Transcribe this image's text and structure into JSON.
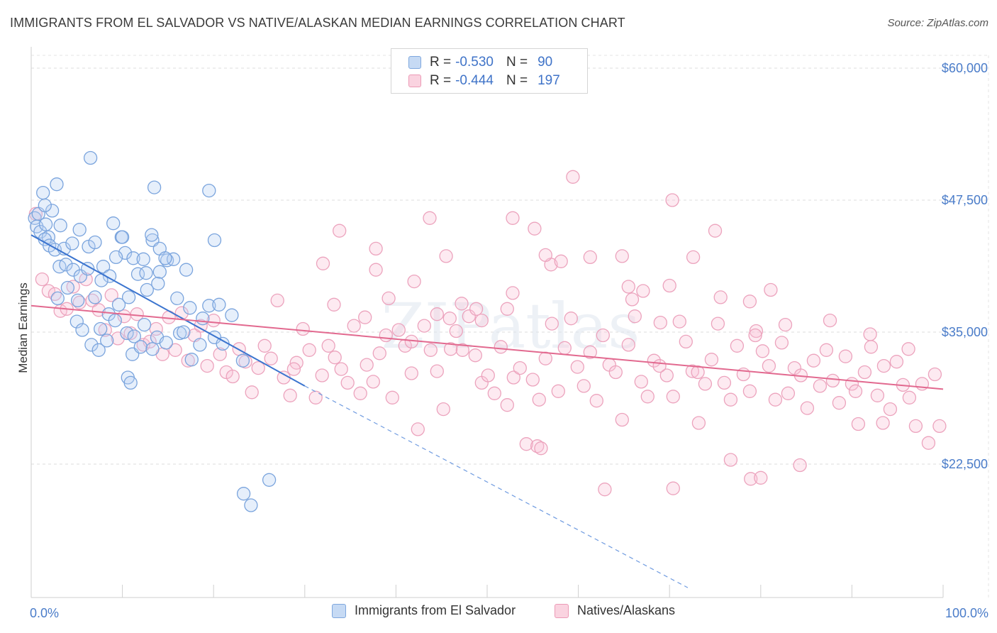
{
  "title": "IMMIGRANTS FROM EL SALVADOR VS NATIVE/ALASKAN MEDIAN EARNINGS CORRELATION CHART",
  "source": "Source: ZipAtlas.com",
  "watermark": "ZIPatlas",
  "legend": {
    "rows": [
      {
        "r_label": "R =",
        "r_value": "-0.530",
        "n_label": "N =",
        "n_value": "90",
        "color": "#8fb5e8"
      },
      {
        "r_label": "R =",
        "r_value": "-0.444",
        "n_label": "N =",
        "n_value": "197",
        "color": "#f1a7bf"
      }
    ]
  },
  "bottom_legend": {
    "series_a": "Immigrants from El Salvador",
    "series_b": "Natives/Alaskans"
  },
  "chart_data": {
    "type": "scatter",
    "title": "IMMIGRANTS FROM EL SALVADOR VS NATIVE/ALASKAN MEDIAN EARNINGS CORRELATION CHART",
    "xlabel": "",
    "ylabel": "Median Earnings",
    "xlim": [
      0,
      100
    ],
    "ylim": [
      12000,
      62000
    ],
    "x_tick_labels": [
      "0.0%",
      "100.0%"
    ],
    "y_ticks": [
      22500,
      35000,
      47500,
      60000
    ],
    "y_tick_labels": [
      "$22,500",
      "$35,000",
      "$47,500",
      "$60,000"
    ],
    "grid": true,
    "legend_position": "top-center",
    "colors": {
      "immigrants": "#5b8fd6",
      "natives": "#e8709a"
    },
    "trendlines": [
      {
        "series": "Immigrants from El Salvador",
        "x_start": 0,
        "y_start": 44200,
        "x_solid_end": 30,
        "y_solid_end": 29900,
        "x_dash_end": 72,
        "y_dash_end": 10800
      },
      {
        "series": "Natives/Alaskans",
        "x_start": 0,
        "y_start": 37500,
        "x_end": 100,
        "y_end": 29600
      }
    ],
    "series": [
      {
        "name": "Immigrants from El Salvador",
        "points": [
          [
            0.4,
            45800
          ],
          [
            0.8,
            46200
          ],
          [
            0.6,
            45000
          ],
          [
            1.0,
            44500
          ],
          [
            1.3,
            48200
          ],
          [
            1.6,
            45200
          ],
          [
            1.9,
            44000
          ],
          [
            2.3,
            46500
          ],
          [
            2.8,
            49000
          ],
          [
            3.2,
            45100
          ],
          [
            1.5,
            43800
          ],
          [
            2.0,
            43200
          ],
          [
            2.6,
            42800
          ],
          [
            3.6,
            42900
          ],
          [
            4.5,
            43400
          ],
          [
            5.3,
            44700
          ],
          [
            6.3,
            43100
          ],
          [
            7.0,
            43500
          ],
          [
            9.0,
            45300
          ],
          [
            9.9,
            44000
          ],
          [
            10.3,
            42500
          ],
          [
            11.2,
            42000
          ],
          [
            12.3,
            41900
          ],
          [
            13.3,
            43700
          ],
          [
            14.1,
            42900
          ],
          [
            14.9,
            41800
          ],
          [
            15.6,
            41900
          ],
          [
            3.1,
            41200
          ],
          [
            3.8,
            41400
          ],
          [
            4.6,
            40900
          ],
          [
            5.4,
            40300
          ],
          [
            6.2,
            41000
          ],
          [
            7.9,
            41200
          ],
          [
            8.6,
            40300
          ],
          [
            9.3,
            42100
          ],
          [
            11.7,
            40500
          ],
          [
            12.6,
            40600
          ],
          [
            14.1,
            40700
          ],
          [
            14.7,
            42000
          ],
          [
            17.0,
            40900
          ],
          [
            2.9,
            38200
          ],
          [
            4.0,
            39200
          ],
          [
            5.1,
            38000
          ],
          [
            7.0,
            38300
          ],
          [
            7.7,
            39900
          ],
          [
            9.6,
            37600
          ],
          [
            10.7,
            38300
          ],
          [
            12.7,
            39000
          ],
          [
            13.9,
            39600
          ],
          [
            16.0,
            38200
          ],
          [
            5.0,
            36000
          ],
          [
            5.6,
            35200
          ],
          [
            7.6,
            35300
          ],
          [
            8.5,
            36700
          ],
          [
            9.2,
            36100
          ],
          [
            10.5,
            34900
          ],
          [
            11.3,
            34600
          ],
          [
            12.4,
            35700
          ],
          [
            13.8,
            34500
          ],
          [
            16.3,
            34900
          ],
          [
            6.6,
            33800
          ],
          [
            7.4,
            33300
          ],
          [
            8.3,
            34200
          ],
          [
            11.1,
            32900
          ],
          [
            12.0,
            33600
          ],
          [
            13.3,
            33400
          ],
          [
            14.8,
            34000
          ],
          [
            16.7,
            35000
          ],
          [
            17.6,
            32400
          ],
          [
            18.5,
            33800
          ],
          [
            10.6,
            30700
          ],
          [
            10.9,
            30200
          ],
          [
            17.4,
            37300
          ],
          [
            18.8,
            36300
          ],
          [
            19.5,
            37500
          ],
          [
            20.6,
            37600
          ],
          [
            22.0,
            36600
          ],
          [
            20.1,
            34500
          ],
          [
            21.0,
            33900
          ],
          [
            23.2,
            32300
          ],
          [
            6.5,
            51500
          ],
          [
            13.5,
            48700
          ],
          [
            19.5,
            48400
          ],
          [
            20.1,
            43700
          ],
          [
            13.2,
            44200
          ],
          [
            10.0,
            44000
          ],
          [
            23.3,
            19700
          ],
          [
            24.1,
            18600
          ],
          [
            26.1,
            21000
          ],
          [
            1.5,
            47000
          ]
        ]
      },
      {
        "name": "Natives/Alaskans",
        "points": [
          [
            0.5,
            46200
          ],
          [
            1.2,
            40000
          ],
          [
            1.9,
            38900
          ],
          [
            2.6,
            38600
          ],
          [
            3.2,
            37000
          ],
          [
            3.9,
            37200
          ],
          [
            4.6,
            39300
          ],
          [
            5.3,
            37800
          ],
          [
            6.0,
            40000
          ],
          [
            6.7,
            38000
          ],
          [
            7.4,
            37100
          ],
          [
            8.1,
            35200
          ],
          [
            8.8,
            38500
          ],
          [
            9.5,
            34400
          ],
          [
            10.2,
            36500
          ],
          [
            10.9,
            34900
          ],
          [
            11.6,
            36700
          ],
          [
            12.3,
            33800
          ],
          [
            13.0,
            34100
          ],
          [
            13.7,
            35300
          ],
          [
            14.4,
            32900
          ],
          [
            15.1,
            36400
          ],
          [
            15.8,
            33300
          ],
          [
            16.5,
            36800
          ],
          [
            17.2,
            32300
          ],
          [
            17.9,
            34700
          ],
          [
            18.6,
            35600
          ],
          [
            19.3,
            31800
          ],
          [
            20.0,
            36100
          ],
          [
            20.7,
            32900
          ],
          [
            21.4,
            31200
          ],
          [
            22.1,
            30800
          ],
          [
            22.8,
            33400
          ],
          [
            23.5,
            32200
          ],
          [
            24.2,
            29300
          ],
          [
            24.9,
            31600
          ],
          [
            25.6,
            33700
          ],
          [
            26.3,
            32500
          ],
          [
            27.0,
            38000
          ],
          [
            27.7,
            30700
          ],
          [
            28.4,
            29000
          ],
          [
            29.1,
            32100
          ],
          [
            29.8,
            35300
          ],
          [
            30.5,
            33300
          ],
          [
            31.2,
            28800
          ],
          [
            31.9,
            30900
          ],
          [
            32.6,
            33700
          ],
          [
            33.3,
            32600
          ],
          [
            34.0,
            31500
          ],
          [
            34.7,
            30200
          ],
          [
            35.4,
            35600
          ],
          [
            36.1,
            29200
          ],
          [
            36.8,
            31900
          ],
          [
            37.5,
            30300
          ],
          [
            38.2,
            33000
          ],
          [
            38.9,
            34700
          ],
          [
            39.6,
            28800
          ],
          [
            40.3,
            35200
          ],
          [
            41.0,
            33700
          ],
          [
            41.7,
            31100
          ],
          [
            42.4,
            25800
          ],
          [
            43.1,
            35600
          ],
          [
            43.8,
            33300
          ],
          [
            44.5,
            31300
          ],
          [
            45.2,
            27700
          ],
          [
            45.9,
            36300
          ],
          [
            46.6,
            35100
          ],
          [
            47.3,
            33300
          ],
          [
            48.0,
            36500
          ],
          [
            48.7,
            32800
          ],
          [
            49.4,
            30200
          ],
          [
            50.1,
            30900
          ],
          [
            50.8,
            29200
          ],
          [
            51.5,
            33600
          ],
          [
            52.2,
            28100
          ],
          [
            52.9,
            30700
          ],
          [
            53.6,
            31600
          ],
          [
            54.3,
            24400
          ],
          [
            55.0,
            30500
          ],
          [
            55.7,
            28600
          ],
          [
            56.4,
            32500
          ],
          [
            57.1,
            35800
          ],
          [
            57.8,
            29400
          ],
          [
            58.5,
            33500
          ],
          [
            59.2,
            36300
          ],
          [
            59.9,
            31700
          ],
          [
            60.6,
            29900
          ],
          [
            61.3,
            33100
          ],
          [
            62.0,
            28500
          ],
          [
            62.7,
            34700
          ],
          [
            63.4,
            31900
          ],
          [
            64.1,
            31200
          ],
          [
            64.8,
            26700
          ],
          [
            65.5,
            33800
          ],
          [
            66.2,
            36500
          ],
          [
            66.9,
            30300
          ],
          [
            67.6,
            28900
          ],
          [
            68.3,
            32300
          ],
          [
            69.0,
            35900
          ],
          [
            69.7,
            30900
          ],
          [
            70.4,
            28900
          ],
          [
            71.1,
            36000
          ],
          [
            71.8,
            34100
          ],
          [
            72.5,
            31300
          ],
          [
            73.2,
            26400
          ],
          [
            73.9,
            30100
          ],
          [
            74.6,
            32400
          ],
          [
            75.3,
            35800
          ],
          [
            76.0,
            30200
          ],
          [
            76.7,
            28600
          ],
          [
            77.4,
            33700
          ],
          [
            78.1,
            31000
          ],
          [
            78.8,
            29400
          ],
          [
            79.5,
            35100
          ],
          [
            80.2,
            33200
          ],
          [
            80.9,
            31800
          ],
          [
            81.6,
            28600
          ],
          [
            82.3,
            34000
          ],
          [
            83.0,
            29200
          ],
          [
            83.7,
            31600
          ],
          [
            84.4,
            30900
          ],
          [
            85.1,
            27800
          ],
          [
            85.8,
            32300
          ],
          [
            86.5,
            29900
          ],
          [
            87.2,
            33300
          ],
          [
            87.9,
            30400
          ],
          [
            88.6,
            28300
          ],
          [
            89.3,
            32700
          ],
          [
            90.0,
            30100
          ],
          [
            90.7,
            26300
          ],
          [
            91.4,
            31200
          ],
          [
            92.1,
            33600
          ],
          [
            92.8,
            29000
          ],
          [
            93.5,
            31800
          ],
          [
            94.2,
            27700
          ],
          [
            94.9,
            32200
          ],
          [
            95.6,
            30000
          ],
          [
            96.3,
            28800
          ],
          [
            97.0,
            26100
          ],
          [
            97.7,
            30100
          ],
          [
            98.4,
            24500
          ],
          [
            99.1,
            31000
          ],
          [
            99.6,
            26100
          ],
          [
            33.8,
            44600
          ],
          [
            37.8,
            42900
          ],
          [
            43.7,
            45800
          ],
          [
            45.5,
            42200
          ],
          [
            52.8,
            45800
          ],
          [
            55.2,
            44800
          ],
          [
            57.0,
            41400
          ],
          [
            59.4,
            49700
          ],
          [
            64.8,
            42200
          ],
          [
            65.9,
            38100
          ],
          [
            70.3,
            47500
          ],
          [
            65.5,
            39300
          ],
          [
            67.1,
            38900
          ],
          [
            72.6,
            42100
          ],
          [
            70.0,
            39400
          ],
          [
            75.0,
            44600
          ],
          [
            75.6,
            38300
          ],
          [
            78.8,
            37900
          ],
          [
            81.1,
            39000
          ],
          [
            32.0,
            41500
          ],
          [
            33.2,
            37600
          ],
          [
            37.8,
            40900
          ],
          [
            39.2,
            38200
          ],
          [
            42.0,
            39800
          ],
          [
            47.2,
            37700
          ],
          [
            49.4,
            36100
          ],
          [
            52.8,
            38700
          ],
          [
            58.1,
            41700
          ],
          [
            61.3,
            42100
          ],
          [
            56.4,
            42300
          ],
          [
            68.9,
            31800
          ],
          [
            73.1,
            31200
          ],
          [
            79.4,
            34700
          ],
          [
            82.7,
            35700
          ],
          [
            87.6,
            36100
          ],
          [
            92.0,
            34800
          ],
          [
            96.2,
            33400
          ],
          [
            93.4,
            26400
          ],
          [
            90.4,
            29400
          ],
          [
            62.9,
            20100
          ],
          [
            70.4,
            20200
          ],
          [
            76.7,
            22900
          ],
          [
            78.9,
            21100
          ],
          [
            80.0,
            21200
          ],
          [
            84.3,
            22400
          ],
          [
            55.5,
            24200
          ],
          [
            55.9,
            24000
          ],
          [
            48.8,
            37200
          ],
          [
            36.6,
            36400
          ],
          [
            52.2,
            37200
          ],
          [
            44.5,
            36700
          ],
          [
            46.0,
            33400
          ],
          [
            41.7,
            34100
          ],
          [
            28.8,
            31500
          ]
        ]
      }
    ]
  }
}
